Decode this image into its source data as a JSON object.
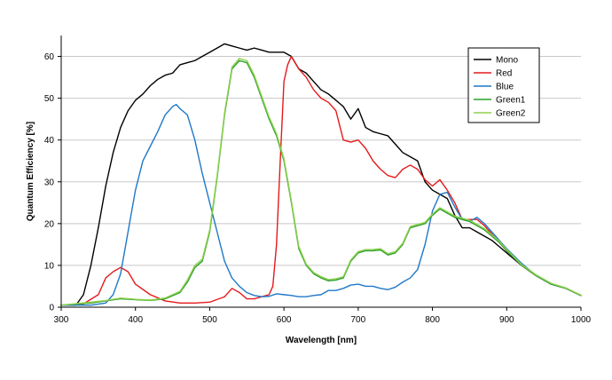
{
  "chart_data": {
    "type": "line",
    "title": "",
    "xlabel": "Wavelength [nm]",
    "ylabel": "Quantum Efficiency [%]",
    "xlim": [
      300,
      1000
    ],
    "ylim": [
      0,
      65
    ],
    "xticks": [
      "300",
      "400",
      "500",
      "600",
      "700",
      "800",
      "900",
      "1000"
    ],
    "yticks": [
      "0",
      "10",
      "20",
      "30",
      "40",
      "50",
      "60"
    ],
    "grid": "horizontal",
    "legend_position": "top-right",
    "series": [
      {
        "name": "Mono",
        "color": "#000000",
        "points": [
          [
            300,
            0.5
          ],
          [
            320,
            0.5
          ],
          [
            330,
            3
          ],
          [
            340,
            10
          ],
          [
            350,
            19
          ],
          [
            360,
            29
          ],
          [
            370,
            37
          ],
          [
            380,
            43
          ],
          [
            390,
            47
          ],
          [
            400,
            49.5
          ],
          [
            410,
            51
          ],
          [
            420,
            53
          ],
          [
            430,
            54.5
          ],
          [
            440,
            55.5
          ],
          [
            450,
            56
          ],
          [
            460,
            58
          ],
          [
            470,
            58.5
          ],
          [
            480,
            59
          ],
          [
            490,
            60
          ],
          [
            500,
            61
          ],
          [
            510,
            62
          ],
          [
            520,
            63
          ],
          [
            530,
            62.5
          ],
          [
            540,
            62
          ],
          [
            550,
            61.5
          ],
          [
            560,
            62
          ],
          [
            570,
            61.5
          ],
          [
            580,
            61
          ],
          [
            590,
            61
          ],
          [
            600,
            61
          ],
          [
            610,
            60
          ],
          [
            620,
            57
          ],
          [
            630,
            56
          ],
          [
            640,
            54
          ],
          [
            650,
            52
          ],
          [
            660,
            51
          ],
          [
            670,
            49.5
          ],
          [
            680,
            48
          ],
          [
            690,
            45
          ],
          [
            700,
            47.5
          ],
          [
            710,
            43
          ],
          [
            720,
            42
          ],
          [
            730,
            41.5
          ],
          [
            740,
            41
          ],
          [
            750,
            39
          ],
          [
            760,
            37
          ],
          [
            770,
            36
          ],
          [
            780,
            35
          ],
          [
            790,
            30
          ],
          [
            800,
            28
          ],
          [
            810,
            27
          ],
          [
            820,
            26
          ],
          [
            830,
            22
          ],
          [
            840,
            19
          ],
          [
            850,
            19
          ],
          [
            860,
            18
          ],
          [
            870,
            17
          ],
          [
            880,
            16
          ],
          [
            890,
            14.5
          ],
          [
            900,
            13
          ],
          [
            920,
            10
          ],
          [
            940,
            7.5
          ],
          [
            960,
            5.5
          ],
          [
            980,
            4.5
          ],
          [
            1000,
            2.8
          ]
        ]
      },
      {
        "name": "Red",
        "color": "#e41a1c",
        "points": [
          [
            300,
            0.5
          ],
          [
            330,
            0.8
          ],
          [
            350,
            3
          ],
          [
            360,
            7
          ],
          [
            370,
            8.5
          ],
          [
            380,
            9.5
          ],
          [
            390,
            8.5
          ],
          [
            400,
            5.5
          ],
          [
            420,
            3
          ],
          [
            440,
            1.5
          ],
          [
            460,
            1
          ],
          [
            480,
            1
          ],
          [
            500,
            1.2
          ],
          [
            520,
            2.5
          ],
          [
            530,
            4.5
          ],
          [
            540,
            3.5
          ],
          [
            550,
            2
          ],
          [
            560,
            2
          ],
          [
            570,
            2.5
          ],
          [
            580,
            3
          ],
          [
            585,
            5
          ],
          [
            590,
            15
          ],
          [
            595,
            35
          ],
          [
            600,
            54
          ],
          [
            605,
            58
          ],
          [
            610,
            60
          ],
          [
            620,
            57
          ],
          [
            630,
            55
          ],
          [
            640,
            52
          ],
          [
            650,
            50
          ],
          [
            660,
            49
          ],
          [
            670,
            47
          ],
          [
            680,
            40
          ],
          [
            690,
            39.5
          ],
          [
            700,
            40
          ],
          [
            710,
            38
          ],
          [
            720,
            35
          ],
          [
            730,
            33
          ],
          [
            740,
            31.5
          ],
          [
            750,
            31
          ],
          [
            760,
            33
          ],
          [
            770,
            34
          ],
          [
            780,
            33
          ],
          [
            790,
            30.5
          ],
          [
            800,
            29
          ],
          [
            810,
            30.5
          ],
          [
            820,
            28
          ],
          [
            830,
            25
          ],
          [
            840,
            21
          ],
          [
            850,
            21
          ],
          [
            860,
            21
          ],
          [
            870,
            19.5
          ],
          [
            880,
            17.5
          ],
          [
            890,
            15.5
          ],
          [
            900,
            13.5
          ],
          [
            920,
            10
          ],
          [
            940,
            7.5
          ],
          [
            960,
            5.5
          ],
          [
            980,
            4.5
          ],
          [
            1000,
            2.8
          ]
        ]
      },
      {
        "name": "Blue",
        "color": "#1f78c8",
        "points": [
          [
            300,
            0.5
          ],
          [
            340,
            0.5
          ],
          [
            360,
            1
          ],
          [
            370,
            3
          ],
          [
            380,
            8
          ],
          [
            390,
            18
          ],
          [
            400,
            28
          ],
          [
            410,
            35
          ],
          [
            420,
            38.5
          ],
          [
            430,
            42
          ],
          [
            440,
            46
          ],
          [
            450,
            48
          ],
          [
            455,
            48.5
          ],
          [
            460,
            47.5
          ],
          [
            470,
            46
          ],
          [
            480,
            40
          ],
          [
            490,
            32
          ],
          [
            500,
            25
          ],
          [
            510,
            18
          ],
          [
            520,
            11
          ],
          [
            530,
            7
          ],
          [
            540,
            5
          ],
          [
            550,
            3.5
          ],
          [
            560,
            2.8
          ],
          [
            570,
            2.5
          ],
          [
            580,
            2.6
          ],
          [
            590,
            3.2
          ],
          [
            600,
            3
          ],
          [
            610,
            2.8
          ],
          [
            620,
            2.5
          ],
          [
            630,
            2.5
          ],
          [
            640,
            2.8
          ],
          [
            650,
            3
          ],
          [
            660,
            4
          ],
          [
            670,
            4
          ],
          [
            680,
            4.5
          ],
          [
            690,
            5.3
          ],
          [
            700,
            5.5
          ],
          [
            710,
            5
          ],
          [
            720,
            5
          ],
          [
            730,
            4.5
          ],
          [
            740,
            4.2
          ],
          [
            750,
            4.8
          ],
          [
            760,
            6
          ],
          [
            770,
            7
          ],
          [
            780,
            9
          ],
          [
            790,
            15
          ],
          [
            800,
            23
          ],
          [
            810,
            27
          ],
          [
            820,
            27.5
          ],
          [
            830,
            24
          ],
          [
            840,
            21
          ],
          [
            850,
            20.5
          ],
          [
            860,
            21.5
          ],
          [
            870,
            20
          ],
          [
            880,
            18
          ],
          [
            890,
            16
          ],
          [
            900,
            14
          ],
          [
            920,
            10.5
          ],
          [
            940,
            7.5
          ],
          [
            960,
            5.5
          ],
          [
            980,
            4.5
          ],
          [
            1000,
            2.8
          ]
        ]
      },
      {
        "name": "Green1",
        "color": "#2ca02c",
        "points": [
          [
            300,
            0.5
          ],
          [
            340,
            1
          ],
          [
            360,
            1.5
          ],
          [
            380,
            2
          ],
          [
            400,
            1.8
          ],
          [
            420,
            1.6
          ],
          [
            440,
            2
          ],
          [
            460,
            3.5
          ],
          [
            470,
            6
          ],
          [
            480,
            9.5
          ],
          [
            490,
            11
          ],
          [
            500,
            18
          ],
          [
            510,
            31
          ],
          [
            520,
            46
          ],
          [
            530,
            57
          ],
          [
            540,
            59
          ],
          [
            550,
            58.5
          ],
          [
            560,
            55
          ],
          [
            570,
            50
          ],
          [
            580,
            45
          ],
          [
            590,
            41
          ],
          [
            600,
            35
          ],
          [
            610,
            25
          ],
          [
            620,
            14
          ],
          [
            630,
            10
          ],
          [
            640,
            8
          ],
          [
            650,
            7
          ],
          [
            660,
            6.3
          ],
          [
            670,
            6.5
          ],
          [
            680,
            7
          ],
          [
            690,
            11
          ],
          [
            700,
            13
          ],
          [
            710,
            13.5
          ],
          [
            720,
            13.5
          ],
          [
            730,
            13.7
          ],
          [
            740,
            12.5
          ],
          [
            750,
            13
          ],
          [
            760,
            15
          ],
          [
            770,
            19
          ],
          [
            780,
            19.5
          ],
          [
            790,
            20
          ],
          [
            800,
            22
          ],
          [
            810,
            23.5
          ],
          [
            820,
            22.5
          ],
          [
            830,
            21.5
          ],
          [
            840,
            21
          ],
          [
            850,
            20.5
          ],
          [
            860,
            19.5
          ],
          [
            870,
            18.5
          ],
          [
            880,
            17
          ],
          [
            890,
            15.5
          ],
          [
            900,
            13.5
          ],
          [
            920,
            10
          ],
          [
            940,
            7.5
          ],
          [
            960,
            5.5
          ],
          [
            980,
            4.5
          ],
          [
            1000,
            2.8
          ]
        ]
      },
      {
        "name": "Green2",
        "color": "#8fd14f",
        "points": [
          [
            300,
            0.5
          ],
          [
            340,
            1.2
          ],
          [
            360,
            1.6
          ],
          [
            380,
            2.2
          ],
          [
            400,
            1.9
          ],
          [
            420,
            1.7
          ],
          [
            440,
            2.2
          ],
          [
            460,
            3.8
          ],
          [
            470,
            6.5
          ],
          [
            480,
            10
          ],
          [
            490,
            11.5
          ],
          [
            500,
            18.5
          ],
          [
            510,
            31.5
          ],
          [
            520,
            46.5
          ],
          [
            530,
            57.5
          ],
          [
            540,
            59.5
          ],
          [
            550,
            59
          ],
          [
            560,
            55.5
          ],
          [
            570,
            50.5
          ],
          [
            580,
            45.5
          ],
          [
            590,
            41.5
          ],
          [
            600,
            35.5
          ],
          [
            610,
            25.5
          ],
          [
            620,
            14.5
          ],
          [
            630,
            10.3
          ],
          [
            640,
            8.3
          ],
          [
            650,
            7.3
          ],
          [
            660,
            6.6
          ],
          [
            670,
            6.8
          ],
          [
            680,
            7.3
          ],
          [
            690,
            11.3
          ],
          [
            700,
            13.3
          ],
          [
            710,
            13.8
          ],
          [
            720,
            13.8
          ],
          [
            730,
            14
          ],
          [
            740,
            12.8
          ],
          [
            750,
            13.3
          ],
          [
            760,
            15.3
          ],
          [
            770,
            19.3
          ],
          [
            780,
            19.8
          ],
          [
            790,
            20.3
          ],
          [
            800,
            22.3
          ],
          [
            810,
            23.8
          ],
          [
            820,
            22.8
          ],
          [
            830,
            21.8
          ],
          [
            840,
            21.3
          ],
          [
            850,
            20.8
          ],
          [
            860,
            19.8
          ],
          [
            870,
            18.8
          ],
          [
            880,
            17.3
          ],
          [
            890,
            15.8
          ],
          [
            900,
            13.8
          ],
          [
            920,
            10.2
          ],
          [
            940,
            7.7
          ],
          [
            960,
            5.7
          ],
          [
            980,
            4.6
          ],
          [
            1000,
            2.9
          ]
        ]
      }
    ]
  }
}
